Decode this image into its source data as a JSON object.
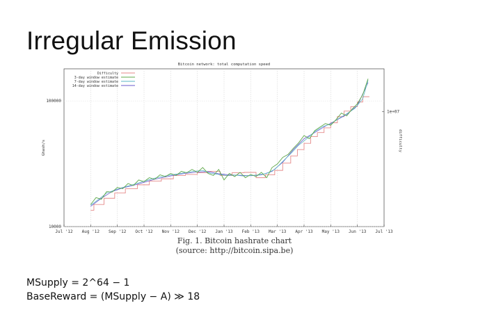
{
  "slide": {
    "title": "Irregular Emission",
    "caption_line1": "Fig. 1. Bitcoin hashrate chart",
    "caption_line2": "(source: http://bitcoin.sipa.be)",
    "formula_line1": "MSupply = 2^64 − 1",
    "formula_line2": "BaseReward = (MSupply − A) ≫ 18"
  },
  "chart_data": {
    "type": "line",
    "title": "Bitcoin network: total computation speed",
    "xlabel": "",
    "ylabel": "Ghash/s",
    "y2label": "difficulty",
    "yscale": "log",
    "ylim": [
      10000,
      180000
    ],
    "ytick_labels": [
      "100000",
      "10000"
    ],
    "ytick_values": [
      100000,
      10000
    ],
    "y2tick_labels": [
      "1e+07"
    ],
    "y2tick_values": [
      82000
    ],
    "xlim": [
      0,
      12
    ],
    "x_tick_labels": [
      "Jul '12",
      "Aug '12",
      "Sep '12",
      "Oct '12",
      "Nov '12",
      "Dec '12",
      "Jan '13",
      "Feb '13",
      "Mar '13",
      "Apr '13",
      "May '13",
      "Jun '13",
      "Jul '13"
    ],
    "legend": [
      "Difficulty",
      "3-day window estimate",
      "7-day window estimate",
      "14-day window estimate"
    ],
    "legend_position": "top-left",
    "series_colors": [
      "#e58a8a",
      "#5fa84a",
      "#5ab4c4",
      "#6a5acd"
    ],
    "difficulty_step": {
      "name": "Difficulty",
      "x": [
        1.0,
        1.12,
        1.5,
        1.9,
        2.3,
        2.75,
        3.2,
        3.65,
        4.1,
        4.55,
        5.0,
        5.4,
        5.85,
        6.3,
        6.75,
        7.2,
        7.55,
        7.9,
        8.2,
        8.5,
        8.75,
        9.0,
        9.25,
        9.5,
        9.75,
        10.0,
        10.25,
        10.5,
        10.75,
        11.0,
        11.2,
        11.45
      ],
      "values": [
        13500,
        15000,
        16800,
        18500,
        20000,
        21500,
        23000,
        24000,
        25500,
        26000,
        26800,
        27500,
        25500,
        26800,
        27000,
        24500,
        25800,
        28000,
        32000,
        36500,
        41000,
        46000,
        52000,
        56000,
        61000,
        67000,
        75000,
        83000,
        90000,
        98000,
        108000,
        108000
      ]
    },
    "series": [
      {
        "name": "3-day window estimate",
        "x": [
          1.0,
          1.2,
          1.4,
          1.6,
          1.8,
          2.0,
          2.2,
          2.4,
          2.6,
          2.8,
          3.0,
          3.2,
          3.4,
          3.6,
          3.8,
          4.0,
          4.2,
          4.4,
          4.6,
          4.8,
          5.0,
          5.2,
          5.4,
          5.6,
          5.8,
          6.0,
          6.2,
          6.4,
          6.6,
          6.8,
          7.0,
          7.2,
          7.4,
          7.6,
          7.8,
          8.0,
          8.2,
          8.4,
          8.6,
          8.8,
          9.0,
          9.2,
          9.4,
          9.6,
          9.8,
          10.0,
          10.2,
          10.4,
          10.6,
          10.8,
          11.0,
          11.2,
          11.4
        ],
        "values": [
          15000,
          17000,
          16500,
          19000,
          18800,
          20500,
          20000,
          22000,
          21200,
          23500,
          22800,
          24500,
          23800,
          25800,
          25000,
          26500,
          25500,
          27500,
          26800,
          28500,
          27000,
          29500,
          26500,
          25500,
          28500,
          23500,
          26500,
          25000,
          27000,
          24500,
          26000,
          25000,
          27000,
          24500,
          29500,
          31500,
          35500,
          37500,
          42000,
          46500,
          53000,
          50000,
          58000,
          62000,
          66000,
          64000,
          71000,
          80000,
          76000,
          86000,
          95000,
          112000,
          150000
        ]
      },
      {
        "name": "7-day window estimate",
        "x": [
          1.0,
          1.3,
          1.6,
          1.9,
          2.2,
          2.5,
          2.8,
          3.1,
          3.4,
          3.7,
          4.0,
          4.3,
          4.6,
          4.9,
          5.2,
          5.5,
          5.8,
          6.1,
          6.4,
          6.7,
          7.0,
          7.3,
          7.6,
          7.9,
          8.2,
          8.5,
          8.8,
          9.1,
          9.4,
          9.7,
          10.0,
          10.3,
          10.6,
          10.9,
          11.2,
          11.4
        ],
        "values": [
          14800,
          16500,
          18500,
          19500,
          20500,
          21300,
          22300,
          23300,
          24300,
          25000,
          25800,
          26300,
          27000,
          27600,
          28000,
          26500,
          26000,
          25500,
          25700,
          25300,
          25500,
          25800,
          26500,
          28500,
          33000,
          38000,
          44500,
          50000,
          57000,
          62500,
          65500,
          72500,
          79000,
          87000,
          104000,
          146000
        ]
      },
      {
        "name": "14-day window estimate",
        "x": [
          1.0,
          1.4,
          1.8,
          2.2,
          2.6,
          3.0,
          3.4,
          3.8,
          4.2,
          4.6,
          5.0,
          5.4,
          5.8,
          6.2,
          6.6,
          7.0,
          7.4,
          7.8,
          8.2,
          8.6,
          9.0,
          9.4,
          9.8,
          10.2,
          10.6,
          11.0,
          11.4
        ],
        "values": [
          14500,
          16800,
          19000,
          20300,
          21300,
          22500,
          23800,
          24800,
          25800,
          26600,
          27200,
          27400,
          26300,
          25800,
          25600,
          25400,
          25800,
          27500,
          32500,
          41000,
          50000,
          56000,
          63000,
          70000,
          78000,
          92000,
          140000
        ]
      }
    ]
  }
}
